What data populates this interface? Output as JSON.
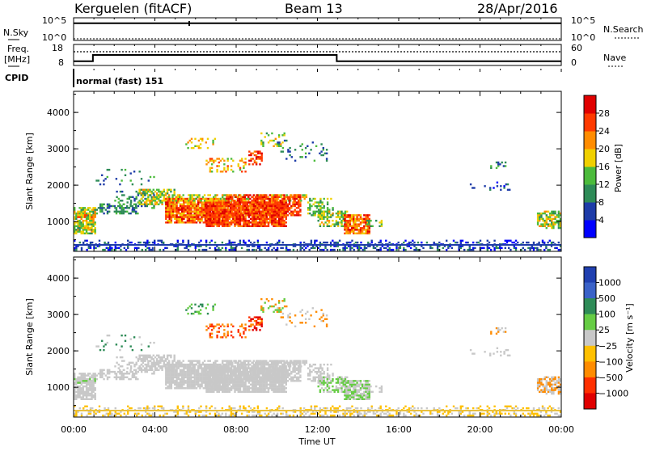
{
  "header": {
    "station": "Kerguelen (fitACF)",
    "beam": "Beam 13",
    "date": "28/Apr/2016"
  },
  "side_labels": {
    "nsky": "N.Sky",
    "freq_line1": "Freq.",
    "freq_line2": "[MHz]",
    "cpid": "CPID",
    "nsearch": "N.Search",
    "nave": "Nave"
  },
  "strip_ticks": {
    "nsky_top": "10^5",
    "nsky_bot": "10^0",
    "nsearch_top": "10^5",
    "nsearch_bot": "10^0",
    "freq_top": "18",
    "freq_bot": "8",
    "nave_top": "60",
    "nave_bot": "0"
  },
  "cpid_text": "normal (fast) 151",
  "chart_data": [
    {
      "type": "line",
      "name": "N.Sky / N.Search",
      "x": [
        0,
        24
      ],
      "series": [
        {
          "name": "N.Sky",
          "style": "solid",
          "values": [
            10000,
            10000
          ]
        },
        {
          "name": "N.Search",
          "style": "dotted",
          "values": [
            1,
            1
          ]
        }
      ],
      "xlim": [
        0,
        24
      ]
    },
    {
      "type": "line",
      "name": "Frequency / Nave",
      "x": [
        0,
        0.95,
        0.95,
        12.95,
        12.95,
        24
      ],
      "series": [
        {
          "name": "Freq",
          "style": "solid",
          "values": [
            9.5,
            9.5,
            13,
            13,
            9.5,
            9.5
          ]
        },
        {
          "name": "Nave",
          "style": "dotted",
          "values": [
            41,
            41,
            41,
            41,
            41,
            41
          ]
        }
      ],
      "xlim": [
        0,
        24
      ]
    },
    {
      "type": "heatmap",
      "ylabel": "Slant Range [km]",
      "ylim": [
        180,
        4580
      ],
      "xlim": [
        0,
        24
      ],
      "yticks": [
        "1000",
        "2000",
        "3000",
        "4000"
      ],
      "colorbar": {
        "label": "Power [dB]",
        "ticks": [
          "4",
          "8",
          "12",
          "16",
          "20",
          "24",
          "28"
        ],
        "range": [
          0,
          32
        ],
        "colors": [
          "#0000ff",
          "#1e3ca8",
          "#2e8b57",
          "#4cbb3c",
          "#f0d000",
          "#ff8c00",
          "#ff3a00",
          "#e00000"
        ]
      }
    },
    {
      "type": "heatmap",
      "ylabel": "Slant Range [km]",
      "xlabel": "Time UT",
      "ylim": [
        180,
        4580
      ],
      "xlim": [
        0,
        24
      ],
      "yticks": [
        "1000",
        "2000",
        "3000",
        "4000"
      ],
      "xticks": [
        "00:00",
        "04:00",
        "08:00",
        "12:00",
        "16:00",
        "20:00",
        "00:00"
      ],
      "colorbar": {
        "label": "Velocity [m s⁻¹]",
        "ticks": [
          "1000",
          "500",
          "100",
          "25",
          "−25",
          "−100",
          "−500",
          "−1000"
        ],
        "colors": [
          "#2040b0",
          "#3a62c8",
          "#2e8b57",
          "#66cc44",
          "#c8c8c8",
          "#ffc000",
          "#ff8c00",
          "#ff3000",
          "#e00000"
        ]
      }
    }
  ]
}
